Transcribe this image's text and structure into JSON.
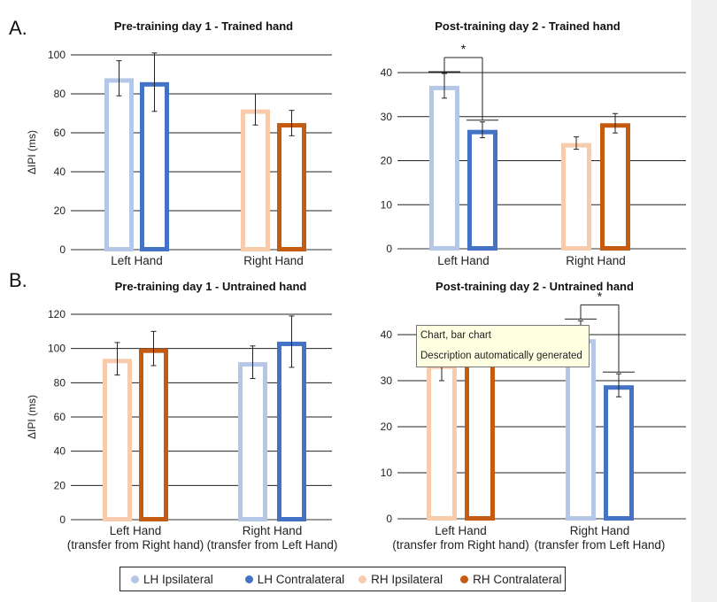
{
  "section_labels": {
    "a": "A.",
    "b": "B."
  },
  "colors": {
    "lh_ipsi": "#b4c7e7",
    "lh_contra": "#4472c4",
    "rh_ipsi": "#f8cbad",
    "rh_contra": "#c55a11"
  },
  "legend": [
    {
      "label": "LH Ipsilateral",
      "color": "#b4c7e7"
    },
    {
      "label": "LH Contralateral",
      "color": "#4472c4"
    },
    {
      "label": "RH Ipsilateral",
      "color": "#f8cbad"
    },
    {
      "label": "RH Contralateral",
      "color": "#c55a11"
    }
  ],
  "tooltip": {
    "line1": "Chart, bar chart",
    "line2": "Description automatically generated"
  },
  "chart_data": [
    {
      "type": "bar",
      "title": "Pre-training day 1 - Trained hand",
      "ylabel": "ΔIPI (ms)",
      "ylim": [
        0,
        100
      ],
      "yticks": [
        0,
        20,
        40,
        60,
        80,
        100
      ],
      "categories": [
        "Left Hand",
        "Right Hand"
      ],
      "bars": [
        {
          "series": "LH Ipsilateral",
          "category": "Left Hand",
          "value": 88,
          "err": 9
        },
        {
          "series": "LH Contralateral",
          "category": "Left Hand",
          "value": 86,
          "err": 15
        },
        {
          "series": "RH Ipsilateral",
          "category": "Right Hand",
          "value": 72,
          "err": 8
        },
        {
          "series": "RH Contralateral",
          "category": "Right Hand",
          "value": 65,
          "err": 6.5
        }
      ],
      "significance": []
    },
    {
      "type": "bar",
      "title": "Post-training day 2 - Trained hand",
      "ylabel": "",
      "ylim": [
        0,
        40
      ],
      "yticks": [
        0,
        10,
        20,
        30,
        40
      ],
      "categories": [
        "Left Hand",
        "Right Hand"
      ],
      "bars": [
        {
          "series": "LH Ipsilateral",
          "category": "Left Hand",
          "value": 37,
          "err": 2.8
        },
        {
          "series": "LH Contralateral",
          "category": "Left Hand",
          "value": 27,
          "err": 1.8
        },
        {
          "series": "RH Ipsilateral",
          "category": "Right Hand",
          "value": 24,
          "err": 1.4
        },
        {
          "series": "RH Contralateral",
          "category": "Right Hand",
          "value": 28.5,
          "err": 2.2
        }
      ],
      "significance": [
        {
          "between": [
            0,
            1
          ],
          "label": "*"
        }
      ]
    },
    {
      "type": "bar",
      "title": "Pre-training day 1 - Untrained hand",
      "ylabel": "ΔIPI (ms)",
      "ylim": [
        0,
        120
      ],
      "yticks": [
        0,
        20,
        40,
        60,
        80,
        100,
        120
      ],
      "categories": [
        "Left Hand (transfer from Right hand)",
        "Right Hand (transfer from Left Hand)"
      ],
      "category_lines": [
        [
          "Left Hand",
          "(transfer from Right hand)"
        ],
        [
          "Right Hand",
          "(transfer from Left Hand)"
        ]
      ],
      "bars": [
        {
          "series": "RH Ipsilateral",
          "category": "Left Hand (transfer from Right hand)",
          "value": 94,
          "err": 9.5
        },
        {
          "series": "RH Contralateral",
          "category": "Left Hand (transfer from Right hand)",
          "value": 100,
          "err": 10
        },
        {
          "series": "LH Ipsilateral",
          "category": "Right Hand (transfer from Left Hand)",
          "value": 92,
          "err": 9.5
        },
        {
          "series": "LH Contralateral",
          "category": "Right Hand (transfer from Left Hand)",
          "value": 104,
          "err": 15
        }
      ],
      "significance": []
    },
    {
      "type": "bar",
      "title": "Post-training day 2 - Untrained hand",
      "ylabel": "",
      "ylim": [
        0,
        45
      ],
      "yticks": [
        0,
        10,
        20,
        30,
        40
      ],
      "categories": [
        "Left Hand (transfer from Right hand)",
        "Right Hand (transfer from Left Hand)"
      ],
      "category_lines": [
        [
          "Left Hand",
          "(transfer from Right hand)"
        ],
        [
          "Right Hand",
          "(transfer from Left Hand)"
        ]
      ],
      "bars": [
        {
          "series": "RH Ipsilateral",
          "category": "Left Hand (transfer from Right hand)",
          "value": 33.5,
          "err": 3.5
        },
        {
          "series": "RH Contralateral",
          "category": "Left Hand (transfer from Right hand)",
          "value": 35,
          "err": 2
        },
        {
          "series": "LH Ipsilateral",
          "category": "Right Hand (transfer from Left Hand)",
          "value": 39,
          "err": 4
        },
        {
          "series": "LH Contralateral",
          "category": "Right Hand (transfer from Left Hand)",
          "value": 29,
          "err": 2.5
        }
      ],
      "significance": [
        {
          "between": [
            2,
            3
          ],
          "label": "*"
        }
      ]
    }
  ]
}
